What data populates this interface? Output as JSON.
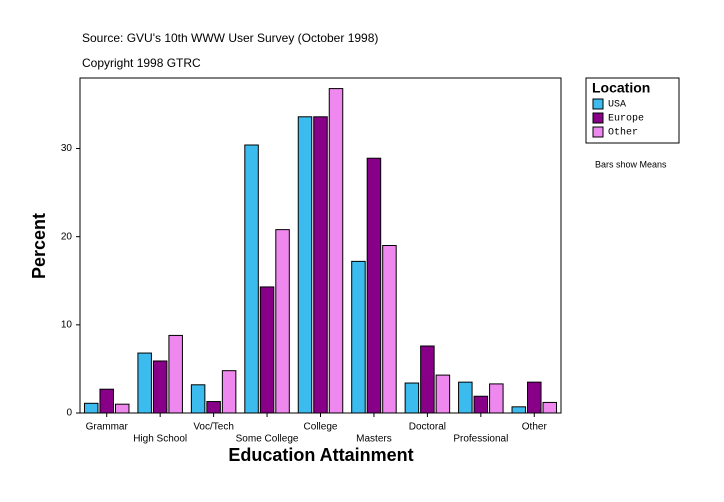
{
  "chart_data": {
    "type": "bar",
    "source": "Source: GVU's 10th WWW User Survey (October 1998)",
    "copyright": "Copyright 1998 GTRC",
    "x_label": "Education Attainment",
    "y_label": "Percent",
    "legend_title": "Location",
    "note": "Bars show Means",
    "categories": [
      "Grammar",
      "High School",
      "Voc/Tech",
      "Some College",
      "College",
      "Masters",
      "Doctoral",
      "Professional",
      "Other"
    ],
    "series": [
      {
        "name": "USA",
        "color": "#3cbcee",
        "values": [
          1.1,
          6.8,
          3.2,
          30.4,
          33.6,
          17.2,
          3.4,
          3.5,
          0.7
        ]
      },
      {
        "name": "Europe",
        "color": "#880088",
        "values": [
          2.7,
          5.9,
          1.3,
          14.3,
          33.6,
          28.9,
          7.6,
          1.9,
          3.5
        ]
      },
      {
        "name": "Other",
        "color": "#ee88ee",
        "values": [
          1.0,
          8.8,
          4.8,
          20.8,
          36.8,
          19.0,
          4.3,
          3.3,
          1.2
        ]
      }
    ],
    "ylim": [
      0,
      38
    ],
    "yticks": [
      0,
      10,
      20,
      30
    ],
    "legend": "right"
  }
}
